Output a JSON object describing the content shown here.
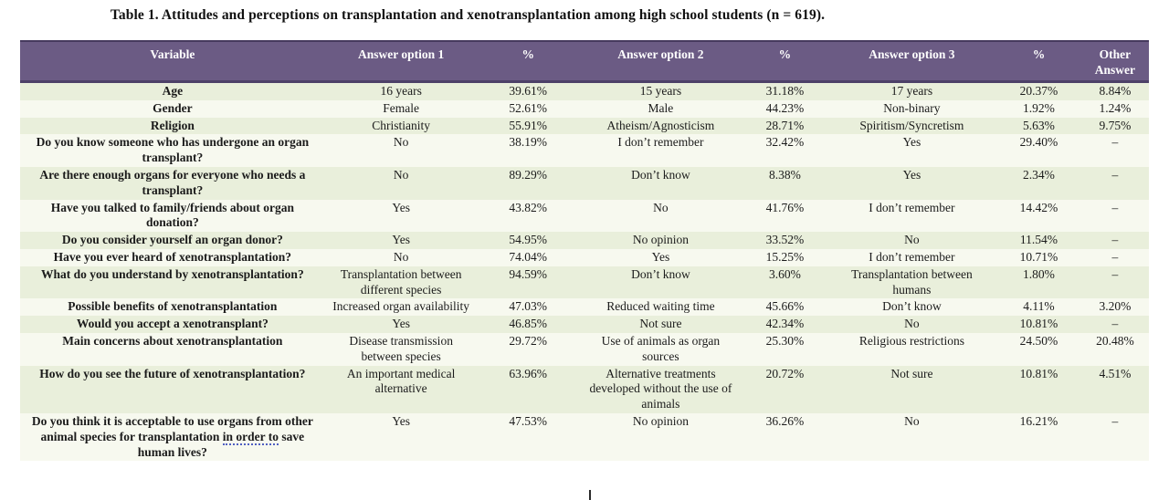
{
  "title": "Table 1. Attitudes and perceptions on transplantation and xenotransplantation among high school students (n = 619).",
  "colors": {
    "header_bg": "#6b5b84",
    "header_border": "#4d4168",
    "header_text": "#ffffff",
    "row_odd": "#e9efdb",
    "row_even": "#f7f9ef",
    "squiggle_underline": "#4f5fc0"
  },
  "table": {
    "columns": [
      "Variable",
      "Answer option 1",
      "%",
      "Answer option 2",
      "%",
      "Answer option 3",
      "%",
      "Other Answer"
    ],
    "rows": [
      {
        "cells": [
          "Age",
          "16 years",
          "39.61%",
          "15 years",
          "31.18%",
          "17 years",
          "20.37%",
          "8.84%"
        ]
      },
      {
        "cells": [
          "Gender",
          "Female",
          "52.61%",
          "Male",
          "44.23%",
          "Non-binary",
          "1.92%",
          "1.24%"
        ]
      },
      {
        "cells": [
          "Religion",
          "Christianity",
          "55.91%",
          "Atheism/Agnosticism",
          "28.71%",
          "Spiritism/Syncretism",
          "5.63%",
          "9.75%"
        ]
      },
      {
        "cells": [
          "Do you know someone who has undergone an organ transplant?",
          "No",
          "38.19%",
          "I don’t remember",
          "32.42%",
          "Yes",
          "29.40%",
          "–"
        ]
      },
      {
        "cells": [
          "Are there enough organs for everyone who needs a transplant?",
          "No",
          "89.29%",
          "Don’t know",
          "8.38%",
          "Yes",
          "2.34%",
          "–"
        ]
      },
      {
        "cells": [
          "Have you talked to family/friends about organ donation?",
          "Yes",
          "43.82%",
          "No",
          "41.76%",
          "I don’t remember",
          "14.42%",
          "–"
        ]
      },
      {
        "cells": [
          "Do you consider yourself an organ donor?",
          "Yes",
          "54.95%",
          "No opinion",
          "33.52%",
          "No",
          "11.54%",
          "–"
        ]
      },
      {
        "cells": [
          "Have you ever heard of xenotransplantation?",
          "No",
          "74.04%",
          "Yes",
          "15.25%",
          "I don’t remember",
          "10.71%",
          "–"
        ]
      },
      {
        "cells": [
          "What do you understand by xenotransplantation?",
          "Transplantation between different species",
          "94.59%",
          "Don’t know",
          "3.60%",
          "Transplantation between humans",
          "1.80%",
          "–"
        ]
      },
      {
        "cells": [
          "Possible benefits of xenotransplantation",
          "Increased organ availability",
          "47.03%",
          "Reduced waiting time",
          "45.66%",
          "Don’t know",
          "4.11%",
          "3.20%"
        ]
      },
      {
        "cells": [
          "Would you accept a xenotransplant?",
          "Yes",
          "46.85%",
          "Not sure",
          "42.34%",
          "No",
          "10.81%",
          "–"
        ]
      },
      {
        "cells": [
          "Main concerns about xenotransplantation",
          "Disease transmission between species",
          "29.72%",
          "Use of animals as organ sources",
          "25.30%",
          "Religious restrictions",
          "24.50%",
          "20.48%"
        ]
      },
      {
        "cells": [
          "How do you see the future of xenotransplantation?",
          "An important medical alternative",
          "63.96%",
          "Alternative treatments developed without the use of animals",
          "20.72%",
          "Not sure",
          "10.81%",
          "4.51%"
        ]
      },
      {
        "cells": [
          "Do you think it is acceptable to use organs from other animal species for transplantation in order to save human lives?",
          "Yes",
          "47.53%",
          "No opinion",
          "36.26%",
          "No",
          "16.21%",
          "–"
        ],
        "squiggle_phrase": "in order to"
      }
    ]
  }
}
